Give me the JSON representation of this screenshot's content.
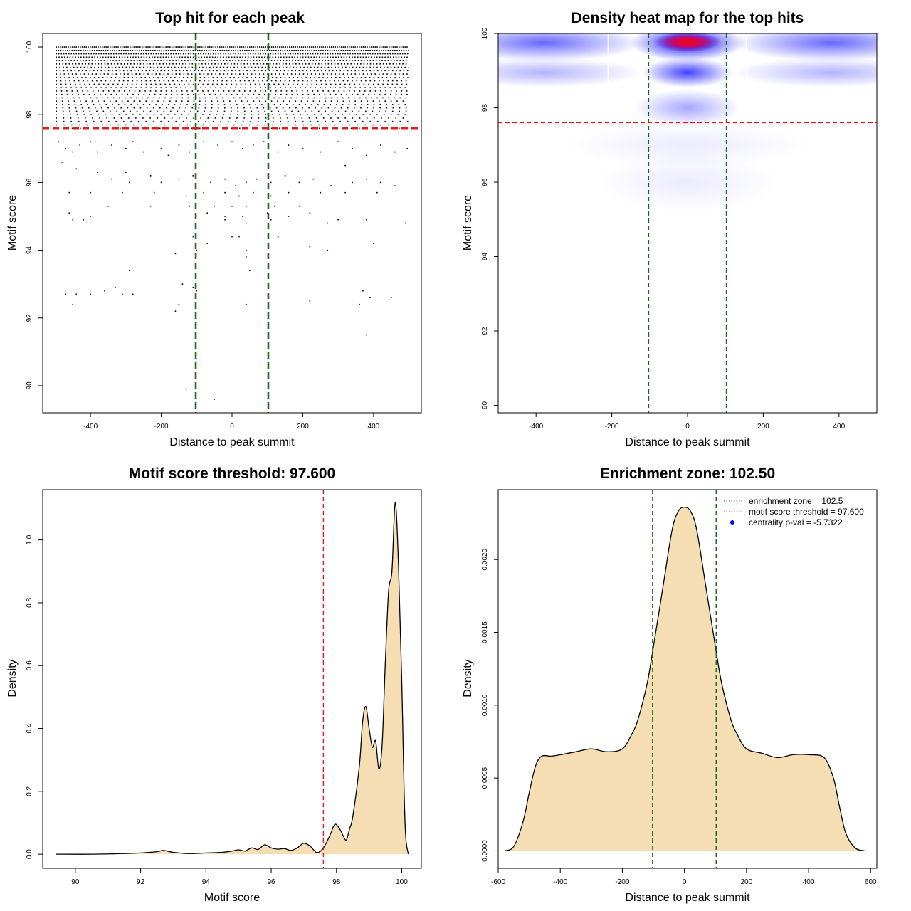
{
  "chart_data": [
    {
      "id": "scatter",
      "type": "scatter",
      "title": "Top hit for each peak",
      "xlabel": "Distance to peak summit",
      "ylabel": "Motif score",
      "xlim": [
        -535,
        535
      ],
      "ylim": [
        89.2,
        100.4
      ],
      "xticks": [
        -400,
        -200,
        0,
        200,
        400
      ],
      "yticks": [
        90,
        92,
        94,
        96,
        98,
        100
      ],
      "vlines": [
        -102.5,
        102.5
      ],
      "hline": 97.6,
      "dense_levels": [
        100,
        99.9,
        99.8,
        99.7,
        99.6,
        99.5,
        99.4,
        99.3,
        99.2,
        99.1,
        99.0,
        98.9,
        98.8,
        98.7,
        98.6,
        98.5,
        98.4,
        98.3,
        98.2,
        98.1,
        98.0,
        97.9,
        97.8,
        97.7,
        97.6
      ],
      "sparse_points": [
        [
          -490,
          97.2
        ],
        [
          -470,
          97.0
        ],
        [
          -450,
          96.9
        ],
        [
          -430,
          97.1
        ],
        [
          -400,
          97.2
        ],
        [
          -380,
          96.9
        ],
        [
          -340,
          97.1
        ],
        [
          -300,
          97.0
        ],
        [
          -280,
          97.2
        ],
        [
          -250,
          96.9
        ],
        [
          -200,
          97.0
        ],
        [
          -180,
          96.8
        ],
        [
          -150,
          97.1
        ],
        [
          -120,
          96.9
        ],
        [
          -80,
          97.2
        ],
        [
          -40,
          97.1
        ],
        [
          0,
          97.2
        ],
        [
          30,
          97.0
        ],
        [
          60,
          97.1
        ],
        [
          90,
          97.2
        ],
        [
          130,
          96.9
        ],
        [
          160,
          97.1
        ],
        [
          200,
          97.0
        ],
        [
          250,
          96.9
        ],
        [
          300,
          97.2
        ],
        [
          340,
          97.0
        ],
        [
          380,
          96.8
        ],
        [
          420,
          97.1
        ],
        [
          460,
          96.9
        ],
        [
          495,
          97.0
        ],
        [
          -480,
          96.6
        ],
        [
          -440,
          96.4
        ],
        [
          -380,
          96.3
        ],
        [
          -340,
          96.1
        ],
        [
          -290,
          96.0
        ],
        [
          -230,
          96.2
        ],
        [
          -200,
          96.0
        ],
        [
          -150,
          96.1
        ],
        [
          -110,
          96.2
        ],
        [
          -60,
          96.0
        ],
        [
          -20,
          96.1
        ],
        [
          10,
          95.9
        ],
        [
          40,
          96.0
        ],
        [
          70,
          96.1
        ],
        [
          110,
          96.0
        ],
        [
          150,
          96.2
        ],
        [
          190,
          96.0
        ],
        [
          230,
          96.1
        ],
        [
          280,
          95.9
        ],
        [
          340,
          96.0
        ],
        [
          380,
          96.1
        ],
        [
          420,
          96.0
        ],
        [
          460,
          95.9
        ],
        [
          -460,
          95.7
        ],
        [
          -400,
          95.7
        ],
        [
          -310,
          95.7
        ],
        [
          -220,
          95.7
        ],
        [
          -130,
          95.6
        ],
        [
          -80,
          95.7
        ],
        [
          -20,
          95.7
        ],
        [
          20,
          95.6
        ],
        [
          60,
          95.7
        ],
        [
          110,
          95.6
        ],
        [
          160,
          95.7
        ],
        [
          250,
          95.7
        ],
        [
          320,
          95.7
        ],
        [
          410,
          95.7
        ],
        [
          -350,
          95.3
        ],
        [
          -230,
          95.3
        ],
        [
          -120,
          95.3
        ],
        [
          -50,
          95.3
        ],
        [
          0,
          95.3
        ],
        [
          40,
          95.3
        ],
        [
          120,
          95.3
        ],
        [
          190,
          95.3
        ],
        [
          -460,
          95.1
        ],
        [
          -400,
          95.0
        ],
        [
          -70,
          95.1
        ],
        [
          -20,
          95.0
        ],
        [
          30,
          95.0
        ],
        [
          100,
          95.1
        ],
        [
          160,
          95.0
        ],
        [
          220,
          95.1
        ],
        [
          -450,
          94.9
        ],
        [
          -420,
          94.9
        ],
        [
          -20,
          94.9
        ],
        [
          40,
          94.8
        ],
        [
          110,
          94.9
        ],
        [
          270,
          94.8
        ],
        [
          300,
          94.9
        ],
        [
          380,
          94.9
        ],
        [
          490,
          94.8
        ],
        [
          -110,
          94.4
        ],
        [
          0,
          94.4
        ],
        [
          20,
          94.4
        ],
        [
          130,
          94.4
        ],
        [
          40,
          94.0
        ],
        [
          -70,
          94.2
        ],
        [
          220,
          94.1
        ],
        [
          400,
          94.2
        ],
        [
          -160,
          93.9
        ],
        [
          -100,
          94.0
        ],
        [
          40,
          93.8
        ],
        [
          50,
          93.4
        ],
        [
          -290,
          93.4
        ],
        [
          -470,
          92.7
        ],
        [
          -440,
          92.7
        ],
        [
          -400,
          92.7
        ],
        [
          -360,
          92.8
        ],
        [
          -330,
          92.9
        ],
        [
          -310,
          92.7
        ],
        [
          -280,
          92.7
        ],
        [
          -100,
          92.8
        ],
        [
          -110,
          92.9
        ],
        [
          -150,
          92.4
        ],
        [
          -160,
          92.2
        ],
        [
          40,
          92.4
        ],
        [
          220,
          92.5
        ],
        [
          360,
          92.4
        ],
        [
          370,
          92.8
        ],
        [
          390,
          92.6
        ],
        [
          450,
          92.6
        ],
        [
          -450,
          92.4
        ],
        [
          380,
          91.5
        ],
        [
          -130,
          89.9
        ],
        [
          -50,
          89.6
        ],
        [
          -140,
          93.0
        ],
        [
          270,
          94.0
        ],
        [
          -300,
          96.3
        ],
        [
          320,
          96.5
        ]
      ]
    },
    {
      "id": "heatmap",
      "type": "heatmap",
      "title": "Density heat map for the top hits",
      "xlabel": "Distance to peak summit",
      "ylabel": "Motif score",
      "xlim": [
        -500,
        500
      ],
      "ylim": [
        89.8,
        100.0
      ],
      "xticks": [
        -400,
        -200,
        0,
        200,
        400
      ],
      "yticks": [
        90,
        92,
        94,
        96,
        98,
        100
      ],
      "vlines": [
        -102.5,
        102.5
      ],
      "hline": 97.6,
      "blobs": [
        {
          "x": 0,
          "y": 99.75,
          "sx": 75,
          "sy": 0.25,
          "intensity": 1.0
        },
        {
          "x": 0,
          "y": 98.95,
          "sx": 60,
          "sy": 0.2,
          "intensity": 0.75
        },
        {
          "x": 0,
          "y": 98.0,
          "sx": 70,
          "sy": 0.25,
          "intensity": 0.35
        },
        {
          "x": -380,
          "y": 99.75,
          "sx": 130,
          "sy": 0.25,
          "intensity": 0.6
        },
        {
          "x": 380,
          "y": 99.75,
          "sx": 130,
          "sy": 0.25,
          "intensity": 0.6
        },
        {
          "x": -380,
          "y": 98.95,
          "sx": 130,
          "sy": 0.2,
          "intensity": 0.3
        },
        {
          "x": 380,
          "y": 98.95,
          "sx": 130,
          "sy": 0.2,
          "intensity": 0.3
        },
        {
          "x": 0,
          "y": 96.0,
          "sx": 120,
          "sy": 0.4,
          "intensity": 0.08
        },
        {
          "x": 0,
          "y": 97.0,
          "sx": 160,
          "sy": 0.3,
          "intensity": 0.08
        }
      ]
    },
    {
      "id": "score-density",
      "type": "area",
      "title": "Motif score threshold: 97.600",
      "xlabel": "Motif score",
      "ylabel": "Density",
      "xlim": [
        89.0,
        100.6
      ],
      "ylim": [
        -0.045,
        1.16
      ],
      "xticks": [
        90,
        92,
        94,
        96,
        98,
        100
      ],
      "yticks": [
        0.0,
        0.2,
        0.4,
        0.6,
        0.8,
        1.0
      ],
      "ytick_labels": [
        "0.0",
        "0.2",
        "0.4",
        "0.6",
        "0.8",
        "1.0"
      ],
      "vline": 97.6,
      "x": [
        89.4,
        90.5,
        91.5,
        92.0,
        92.5,
        92.7,
        93.0,
        93.5,
        94.0,
        94.5,
        94.8,
        95.0,
        95.2,
        95.4,
        95.6,
        95.8,
        96.0,
        96.2,
        96.4,
        96.6,
        96.8,
        97.0,
        97.2,
        97.4,
        97.6,
        97.8,
        97.95,
        98.1,
        98.2,
        98.3,
        98.4,
        98.5,
        98.7,
        98.8,
        98.9,
        99.0,
        99.1,
        99.2,
        99.3,
        99.4,
        99.5,
        99.6,
        99.7,
        99.8,
        99.9,
        100.0,
        100.1,
        100.2
      ],
      "y": [
        0.0,
        0.0,
        0.002,
        0.004,
        0.008,
        0.012,
        0.006,
        0.002,
        0.004,
        0.006,
        0.01,
        0.014,
        0.01,
        0.02,
        0.015,
        0.03,
        0.02,
        0.016,
        0.018,
        0.012,
        0.02,
        0.035,
        0.025,
        0.005,
        0.02,
        0.06,
        0.095,
        0.08,
        0.06,
        0.045,
        0.08,
        0.12,
        0.28,
        0.42,
        0.47,
        0.4,
        0.34,
        0.36,
        0.27,
        0.35,
        0.62,
        0.84,
        0.9,
        1.12,
        0.92,
        0.55,
        0.1,
        0.0
      ]
    },
    {
      "id": "distance-density",
      "type": "area",
      "title": "Enrichment zone: 102.50",
      "xlabel": "Distance to peak summit",
      "ylabel": "Density",
      "xlim": [
        -600,
        620
      ],
      "ylim": [
        -0.00012,
        0.00248
      ],
      "xticks": [
        -600,
        -400,
        -200,
        0,
        200,
        400,
        600
      ],
      "yticks": [
        0.0,
        0.0005,
        0.001,
        0.0015,
        0.002
      ],
      "ytick_labels": [
        "0.0000",
        "0.0005",
        "0.0010",
        "0.0015",
        "0.0020"
      ],
      "vlines": [
        -102.5,
        102.5
      ],
      "x": [
        -580,
        -550,
        -520,
        -500,
        -480,
        -460,
        -430,
        -400,
        -350,
        -300,
        -250,
        -200,
        -170,
        -150,
        -120,
        -100,
        -70,
        -40,
        -20,
        0,
        20,
        40,
        70,
        100,
        120,
        150,
        170,
        200,
        250,
        300,
        350,
        400,
        450,
        480,
        500,
        520,
        550,
        580
      ],
      "y": [
        0.0,
        3e-05,
        0.0002,
        0.0004,
        0.00058,
        0.00065,
        0.00065,
        0.00066,
        0.00068,
        0.0007,
        0.00068,
        0.0007,
        0.0008,
        0.0009,
        0.00115,
        0.0014,
        0.0018,
        0.0022,
        0.00233,
        0.00236,
        0.00233,
        0.0022,
        0.0018,
        0.0014,
        0.00115,
        0.0009,
        0.0008,
        0.0007,
        0.00067,
        0.00064,
        0.00066,
        0.00066,
        0.00064,
        0.0005,
        0.0003,
        0.00012,
        2e-05,
        0.0
      ],
      "legend": [
        {
          "label": "enrichment zone = 102.5",
          "color": "#006400",
          "style": "dotted"
        },
        {
          "label": "motif score threshold = 97.600",
          "color": "#e41a1c",
          "style": "dotted"
        },
        {
          "label": "centrality p-val = -5.7322",
          "color": "#0000ff",
          "style": "dot"
        }
      ]
    }
  ]
}
